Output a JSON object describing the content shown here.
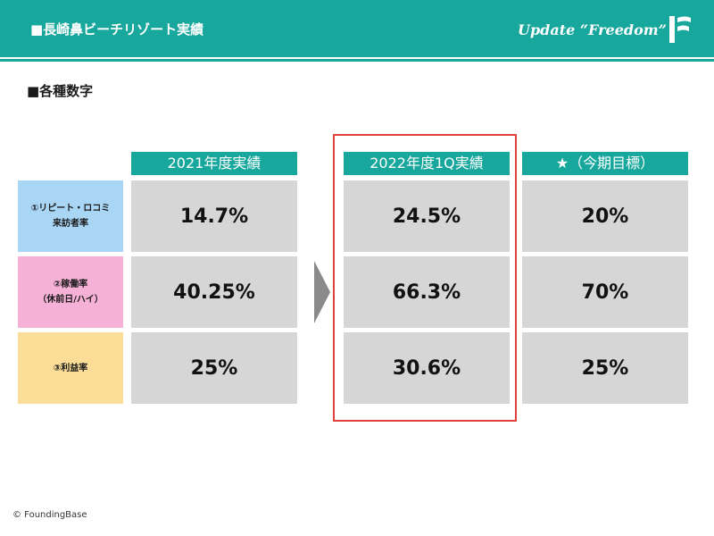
{
  "header": {
    "title": "■長崎鼻ビーチリゾート実績",
    "slogan": "Update “Freedom”",
    "logo_icon": "founding-base-logo-icon",
    "color": "#17a79c"
  },
  "section_title": "■各種数字",
  "columns": [
    {
      "label": "2021年度実績"
    },
    {
      "label": "2022年度1Q実績"
    },
    {
      "label": "★（今期目標）"
    }
  ],
  "rows": [
    {
      "label": "①リピート・ロコミ\n来訪者率",
      "color": "#a9d6f5",
      "values": [
        "14.7%",
        "24.5%",
        "20%"
      ]
    },
    {
      "label": "②稼働率\n（休前日/ハイ）",
      "color": "#f5b1d6",
      "values": [
        "40.25%",
        "66.3%",
        "70%"
      ]
    },
    {
      "label": "③利益率",
      "color": "#fcdd98",
      "values": [
        "25%",
        "30.6%",
        "25%"
      ]
    }
  ],
  "highlight_color": "#e0403a",
  "arrow_icon": "chevron-right-icon",
  "footer": {
    "copyright": "© FoundingBase"
  }
}
